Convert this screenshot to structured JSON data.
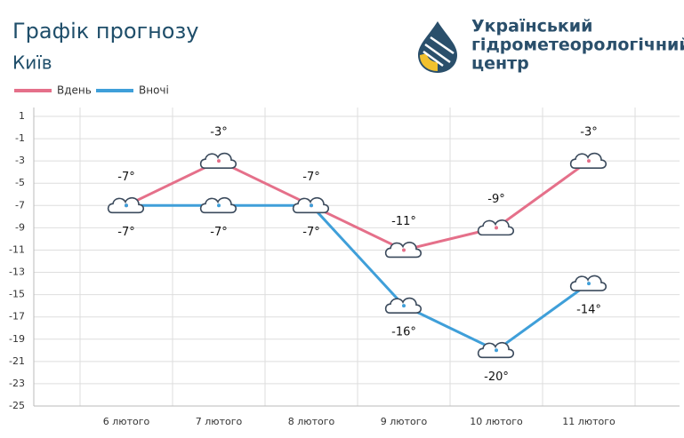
{
  "chart_data": {
    "type": "line",
    "title": "Графік прогнозу",
    "subtitle": "Київ",
    "logo_lines": [
      "Український",
      "гідрометеорологічний",
      "центр"
    ],
    "categories": [
      "6 лютого",
      "7 лютого",
      "8 лютого",
      "9 лютого",
      "10 лютого",
      "11 лютого"
    ],
    "series": [
      {
        "name": "Вдень",
        "color": "#e5708a",
        "values": [
          -7,
          -3,
          -7,
          -11,
          -9,
          -3
        ],
        "value_labels": [
          "-7°",
          "-3°",
          "-7°",
          "-11°",
          "-9°",
          "-3°"
        ]
      },
      {
        "name": "Вночі",
        "color": "#3f9fd9",
        "values": [
          -7,
          -7,
          -7,
          -16,
          -20,
          -14
        ],
        "value_labels": [
          "-7°",
          "-7°",
          "-7°",
          "-16°",
          "-20°",
          "-14°"
        ]
      }
    ],
    "ylim": [
      -25,
      1
    ],
    "yticks": [
      1,
      -1,
      -3,
      -5,
      -7,
      -9,
      -11,
      -13,
      -15,
      -17,
      -19,
      -21,
      -23,
      -25
    ],
    "grid": true,
    "legend": "top-left"
  }
}
